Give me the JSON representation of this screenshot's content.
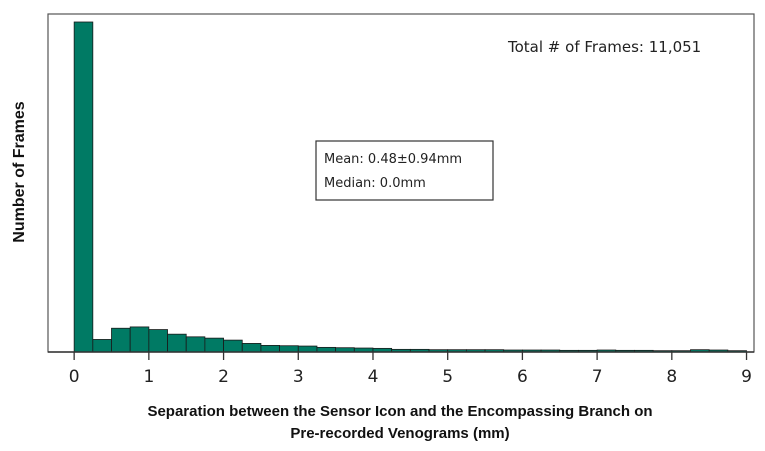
{
  "chart_data": {
    "type": "bar",
    "title": "",
    "xlabel_line1": "Separation between the Sensor Icon and the Encompassing Branch on",
    "xlabel_line2": "Pre-recorded Venograms (mm)",
    "ylabel": "Number of Frames",
    "xlim": [
      -0.35,
      9.1
    ],
    "ylim": [
      0,
      100
    ],
    "xticks": [
      0,
      1,
      2,
      3,
      4,
      5,
      6,
      7,
      8,
      9
    ],
    "bin_width": 0.25,
    "bins_start": [
      0,
      0.25,
      0.5,
      0.75,
      1.0,
      1.25,
      1.5,
      1.75,
      2.0,
      2.25,
      2.5,
      2.75,
      3.0,
      3.25,
      3.5,
      3.75,
      4.0,
      4.25,
      4.5,
      4.75,
      5.0,
      5.25,
      5.5,
      5.75,
      6.0,
      6.25,
      6.5,
      6.75,
      7.0,
      7.25,
      7.5,
      7.75,
      8.0,
      8.25,
      8.5,
      8.75
    ],
    "values": [
      100,
      3.8,
      7.2,
      7.6,
      6.8,
      5.4,
      4.6,
      4.2,
      3.6,
      2.6,
      2.0,
      1.9,
      1.8,
      1.4,
      1.3,
      1.2,
      1.1,
      0.8,
      0.8,
      0.7,
      0.7,
      0.7,
      0.7,
      0.6,
      0.6,
      0.6,
      0.5,
      0.5,
      0.6,
      0.5,
      0.5,
      0.4,
      0.4,
      0.7,
      0.6,
      0.4
    ],
    "bar_color": "#007a64",
    "annotation_total": "Total # of Frames: 11,051",
    "stats": {
      "mean": "Mean: 0.48±0.94mm",
      "median": "Median: 0.0mm"
    },
    "grid": false
  }
}
